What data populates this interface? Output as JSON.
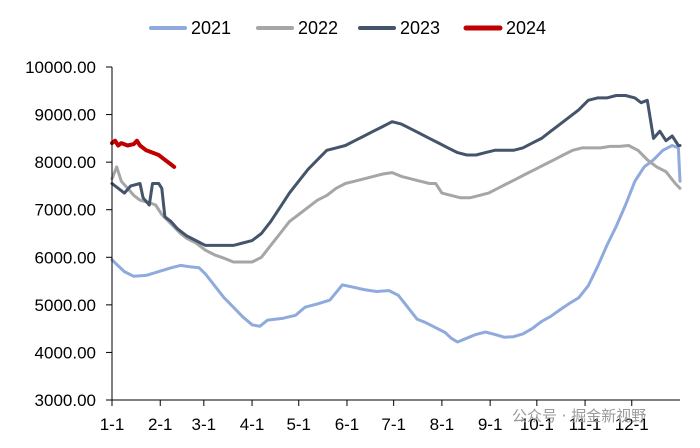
{
  "chart_data": {
    "type": "line",
    "title": "",
    "xlabel": "",
    "ylabel": "",
    "ylim": [
      3000,
      10000
    ],
    "xlim": [
      0,
      365
    ],
    "yticks": [
      "3000.00",
      "4000.00",
      "5000.00",
      "6000.00",
      "7000.00",
      "8000.00",
      "9000.00",
      "10000.00"
    ],
    "xticks": [
      {
        "day": 0,
        "label": "1-1"
      },
      {
        "day": 31,
        "label": "2-1"
      },
      {
        "day": 59,
        "label": "3-1"
      },
      {
        "day": 90,
        "label": "4-1"
      },
      {
        "day": 120,
        "label": "5-1"
      },
      {
        "day": 151,
        "label": "6-1"
      },
      {
        "day": 181,
        "label": "7-1"
      },
      {
        "day": 212,
        "label": "8-1"
      },
      {
        "day": 243,
        "label": "9-1"
      },
      {
        "day": 273,
        "label": "10-1"
      },
      {
        "day": 304,
        "label": "11-1"
      },
      {
        "day": 334,
        "label": "12-1"
      }
    ],
    "grid": false,
    "legend_position": "top",
    "series": [
      {
        "name": "2021",
        "color": "#8faadc",
        "points": [
          [
            0,
            5950
          ],
          [
            3,
            5850
          ],
          [
            8,
            5700
          ],
          [
            14,
            5600
          ],
          [
            22,
            5620
          ],
          [
            30,
            5700
          ],
          [
            38,
            5780
          ],
          [
            44,
            5830
          ],
          [
            50,
            5800
          ],
          [
            56,
            5780
          ],
          [
            60,
            5650
          ],
          [
            66,
            5400
          ],
          [
            72,
            5150
          ],
          [
            78,
            4950
          ],
          [
            84,
            4750
          ],
          [
            90,
            4580
          ],
          [
            95,
            4550
          ],
          [
            100,
            4680
          ],
          [
            110,
            4720
          ],
          [
            118,
            4780
          ],
          [
            124,
            4950
          ],
          [
            132,
            5020
          ],
          [
            140,
            5100
          ],
          [
            148,
            5420
          ],
          [
            154,
            5380
          ],
          [
            162,
            5320
          ],
          [
            170,
            5280
          ],
          [
            178,
            5300
          ],
          [
            184,
            5200
          ],
          [
            190,
            4950
          ],
          [
            196,
            4700
          ],
          [
            202,
            4620
          ],
          [
            208,
            4520
          ],
          [
            214,
            4420
          ],
          [
            218,
            4300
          ],
          [
            222,
            4220
          ],
          [
            228,
            4300
          ],
          [
            234,
            4380
          ],
          [
            240,
            4430
          ],
          [
            246,
            4380
          ],
          [
            252,
            4320
          ],
          [
            258,
            4330
          ],
          [
            264,
            4390
          ],
          [
            270,
            4500
          ],
          [
            276,
            4650
          ],
          [
            282,
            4760
          ],
          [
            288,
            4900
          ],
          [
            294,
            5030
          ],
          [
            300,
            5150
          ],
          [
            306,
            5400
          ],
          [
            312,
            5800
          ],
          [
            318,
            6250
          ],
          [
            324,
            6650
          ],
          [
            330,
            7100
          ],
          [
            336,
            7600
          ],
          [
            342,
            7900
          ],
          [
            348,
            8050
          ],
          [
            354,
            8250
          ],
          [
            360,
            8350
          ],
          [
            364,
            8300
          ],
          [
            365,
            7600
          ]
        ]
      },
      {
        "name": "2022",
        "color": "#a6a6a6",
        "points": [
          [
            0,
            7650
          ],
          [
            3,
            7900
          ],
          [
            6,
            7600
          ],
          [
            10,
            7450
          ],
          [
            14,
            7300
          ],
          [
            18,
            7200
          ],
          [
            24,
            7150
          ],
          [
            28,
            7100
          ],
          [
            32,
            6900
          ],
          [
            38,
            6700
          ],
          [
            44,
            6500
          ],
          [
            48,
            6400
          ],
          [
            54,
            6300
          ],
          [
            60,
            6150
          ],
          [
            66,
            6050
          ],
          [
            72,
            5980
          ],
          [
            78,
            5900
          ],
          [
            84,
            5900
          ],
          [
            90,
            5900
          ],
          [
            96,
            6000
          ],
          [
            102,
            6250
          ],
          [
            108,
            6500
          ],
          [
            114,
            6750
          ],
          [
            120,
            6900
          ],
          [
            126,
            7050
          ],
          [
            132,
            7200
          ],
          [
            138,
            7300
          ],
          [
            144,
            7450
          ],
          [
            150,
            7550
          ],
          [
            156,
            7600
          ],
          [
            162,
            7650
          ],
          [
            168,
            7700
          ],
          [
            174,
            7750
          ],
          [
            180,
            7780
          ],
          [
            186,
            7700
          ],
          [
            192,
            7650
          ],
          [
            198,
            7600
          ],
          [
            204,
            7550
          ],
          [
            208,
            7550
          ],
          [
            212,
            7350
          ],
          [
            218,
            7300
          ],
          [
            224,
            7250
          ],
          [
            230,
            7250
          ],
          [
            236,
            7300
          ],
          [
            242,
            7350
          ],
          [
            248,
            7450
          ],
          [
            254,
            7550
          ],
          [
            260,
            7650
          ],
          [
            266,
            7750
          ],
          [
            272,
            7850
          ],
          [
            278,
            7950
          ],
          [
            284,
            8050
          ],
          [
            290,
            8150
          ],
          [
            296,
            8250
          ],
          [
            302,
            8300
          ],
          [
            308,
            8300
          ],
          [
            314,
            8300
          ],
          [
            320,
            8330
          ],
          [
            326,
            8330
          ],
          [
            332,
            8350
          ],
          [
            338,
            8250
          ],
          [
            344,
            8050
          ],
          [
            350,
            7900
          ],
          [
            356,
            7800
          ],
          [
            362,
            7550
          ],
          [
            365,
            7450
          ]
        ]
      },
      {
        "name": "2023",
        "color": "#44546a",
        "points": [
          [
            0,
            7550
          ],
          [
            4,
            7450
          ],
          [
            8,
            7350
          ],
          [
            12,
            7500
          ],
          [
            18,
            7550
          ],
          [
            20,
            7250
          ],
          [
            24,
            7100
          ],
          [
            26,
            7550
          ],
          [
            30,
            7550
          ],
          [
            32,
            7450
          ],
          [
            34,
            6850
          ],
          [
            38,
            6750
          ],
          [
            42,
            6600
          ],
          [
            48,
            6450
          ],
          [
            54,
            6350
          ],
          [
            60,
            6250
          ],
          [
            66,
            6250
          ],
          [
            72,
            6250
          ],
          [
            78,
            6250
          ],
          [
            84,
            6300
          ],
          [
            90,
            6350
          ],
          [
            96,
            6500
          ],
          [
            102,
            6750
          ],
          [
            108,
            7050
          ],
          [
            114,
            7350
          ],
          [
            120,
            7600
          ],
          [
            126,
            7850
          ],
          [
            132,
            8050
          ],
          [
            138,
            8250
          ],
          [
            144,
            8300
          ],
          [
            150,
            8350
          ],
          [
            156,
            8450
          ],
          [
            162,
            8550
          ],
          [
            168,
            8650
          ],
          [
            174,
            8750
          ],
          [
            180,
            8850
          ],
          [
            186,
            8800
          ],
          [
            192,
            8700
          ],
          [
            198,
            8600
          ],
          [
            204,
            8500
          ],
          [
            210,
            8400
          ],
          [
            216,
            8300
          ],
          [
            222,
            8200
          ],
          [
            228,
            8150
          ],
          [
            234,
            8150
          ],
          [
            240,
            8200
          ],
          [
            246,
            8250
          ],
          [
            252,
            8250
          ],
          [
            258,
            8250
          ],
          [
            264,
            8300
          ],
          [
            270,
            8400
          ],
          [
            276,
            8500
          ],
          [
            282,
            8650
          ],
          [
            288,
            8800
          ],
          [
            294,
            8950
          ],
          [
            300,
            9100
          ],
          [
            306,
            9300
          ],
          [
            312,
            9350
          ],
          [
            318,
            9350
          ],
          [
            324,
            9400
          ],
          [
            330,
            9400
          ],
          [
            336,
            9350
          ],
          [
            340,
            9250
          ],
          [
            344,
            9300
          ],
          [
            348,
            8500
          ],
          [
            352,
            8650
          ],
          [
            356,
            8450
          ],
          [
            360,
            8550
          ],
          [
            364,
            8350
          ],
          [
            365,
            8350
          ]
        ]
      },
      {
        "name": "2024",
        "color": "#c00000",
        "points": [
          [
            0,
            8400
          ],
          [
            2,
            8450
          ],
          [
            4,
            8350
          ],
          [
            6,
            8400
          ],
          [
            10,
            8350
          ],
          [
            14,
            8380
          ],
          [
            16,
            8450
          ],
          [
            18,
            8350
          ],
          [
            22,
            8250
          ],
          [
            26,
            8200
          ],
          [
            30,
            8150
          ],
          [
            32,
            8100
          ],
          [
            34,
            8050
          ],
          [
            36,
            8000
          ],
          [
            38,
            7950
          ],
          [
            40,
            7900
          ]
        ]
      }
    ]
  },
  "watermark": {
    "text": "公众号 · 掘金新视野"
  }
}
